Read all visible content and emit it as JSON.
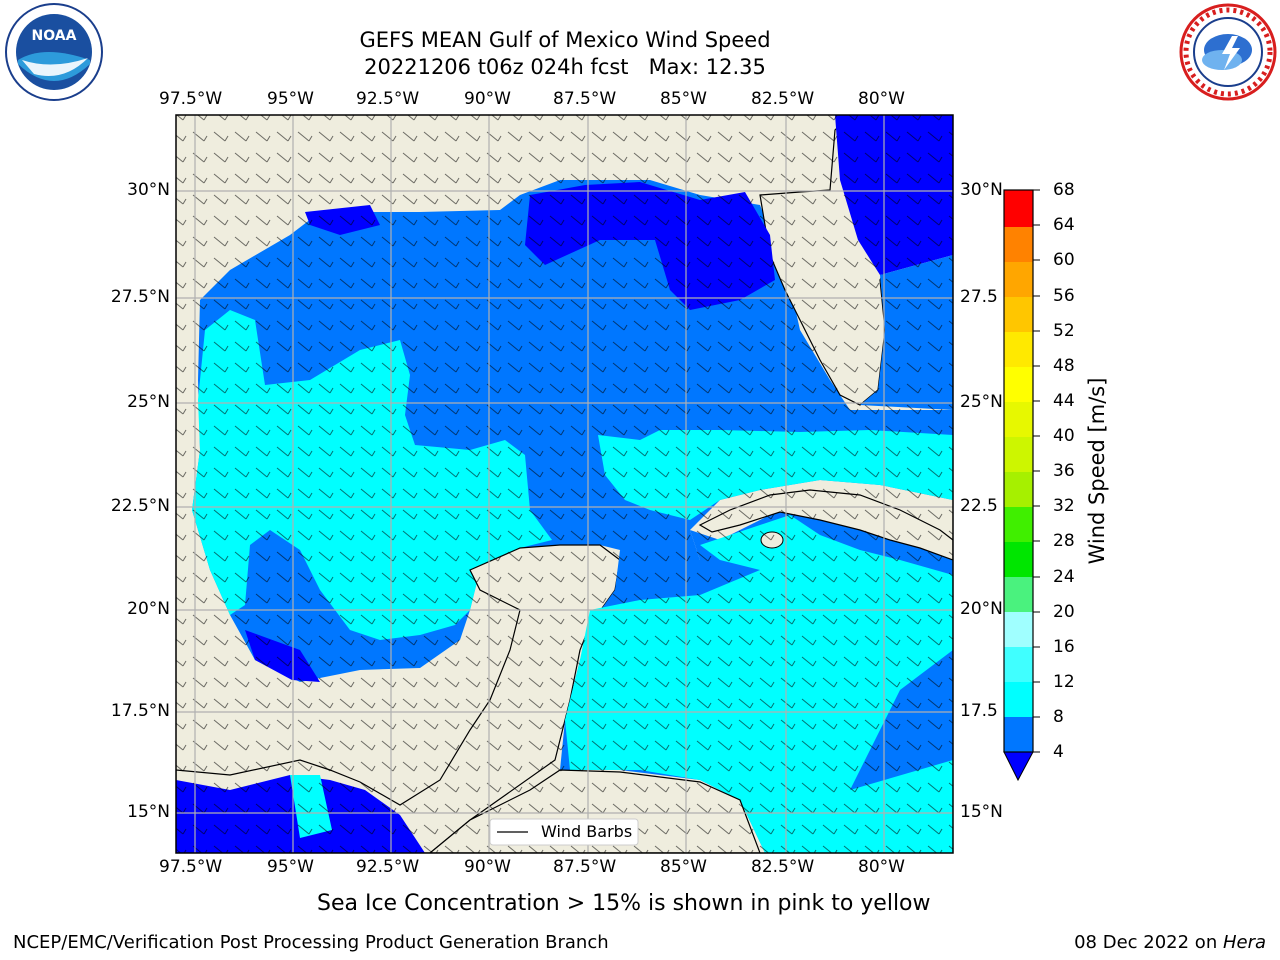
{
  "header": {
    "title_line1": "GEFS MEAN Gulf of Mexico Wind Speed",
    "title_line2": "20221206 t06z 024h fcst   Max: 12.35"
  },
  "logos": {
    "left": {
      "text": "NOAA",
      "icon": "noaa-logo-icon"
    },
    "right": {
      "icon": "national-weather-service-logo-icon"
    }
  },
  "map": {
    "lon_labels": [
      "97.5°W",
      "95°W",
      "92.5°W",
      "90°W",
      "87.5°W",
      "85°W",
      "82.5°W",
      "80°W"
    ],
    "lat_labels_left": [
      "30°N",
      "27.5°N",
      "25°N",
      "22.5°N",
      "20°N",
      "17.5°N",
      "15°N"
    ],
    "lat_labels_right": [
      "30°N",
      "27.5",
      "25°N",
      "22.5",
      "20°N",
      "17.5",
      "15°N"
    ],
    "legend_label": "Wind Barbs",
    "colors": {
      "land": "#efedde",
      "bin4": "#0077ff",
      "bin8": "#00ffff",
      "calm": "#0000ff"
    }
  },
  "colorbar": {
    "label": "Wind Speed [m/s]",
    "ticks": [
      "68",
      "64",
      "60",
      "56",
      "52",
      "48",
      "44",
      "40",
      "36",
      "32",
      "28",
      "24",
      "20",
      "16",
      "12",
      "8",
      "4"
    ],
    "colors": [
      "#0077ff",
      "#00ffff",
      "#40ffff",
      "#a0ffff",
      "#4af27e",
      "#00e600",
      "#40ef00",
      "#a6f000",
      "#cdf600",
      "#e7f800",
      "#ffff00",
      "#ffe900",
      "#ffc600",
      "#ffa600",
      "#ff8200",
      "#ff5a00",
      "#ff3300",
      "#ff0000"
    ]
  },
  "caption": "Sea Ice Concentration > 15% is shown in pink to yellow",
  "footer": {
    "left": "NCEP/EMC/Verification Post Processing Product Generation Branch",
    "right_date": "08 Dec 2022 on ",
    "right_host": "Hera"
  }
}
